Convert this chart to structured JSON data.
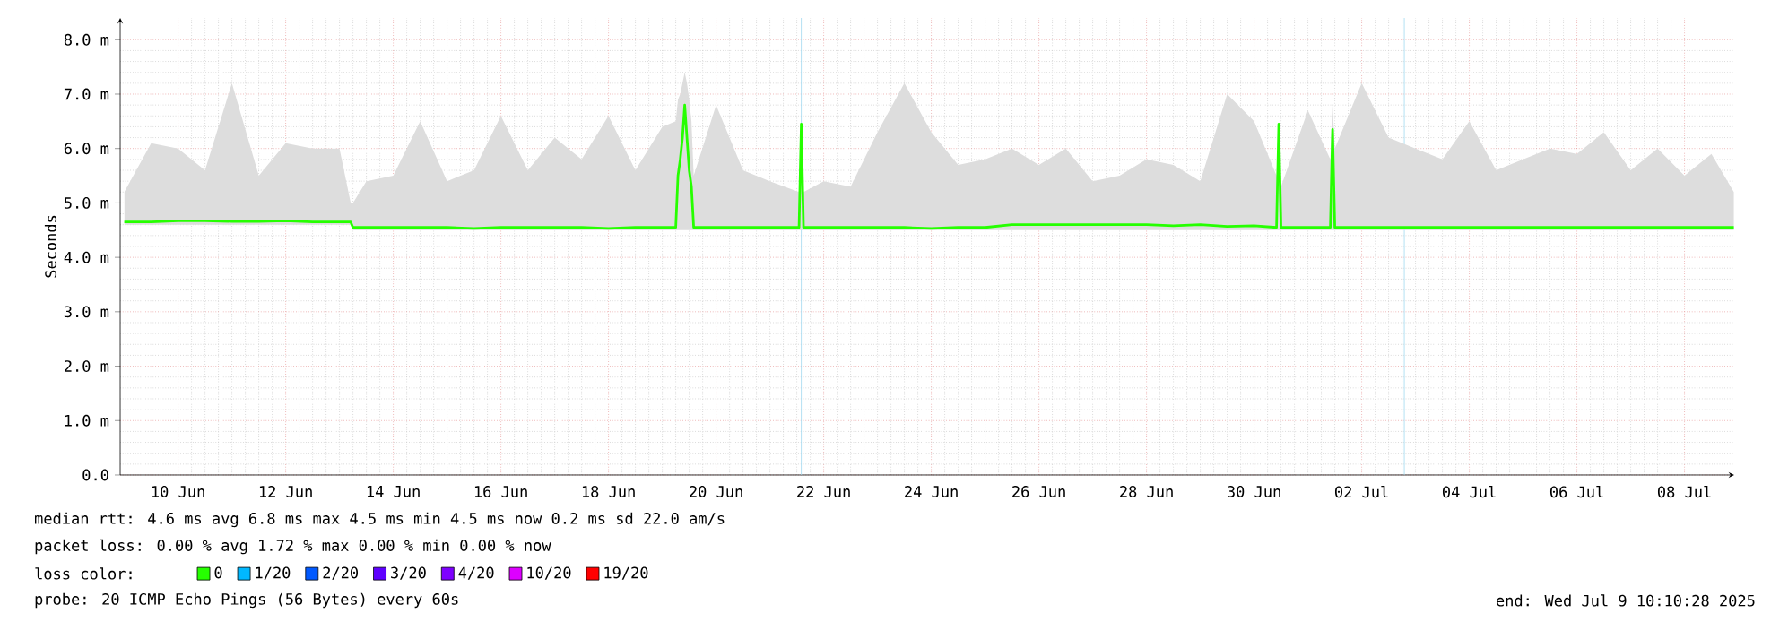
{
  "chart_data": {
    "type": "line",
    "ylabel": "Seconds",
    "x": [
      "2025-06-09T12:00",
      "2025-06-10T00:00",
      "2025-06-10T12:00",
      "2025-06-11T00:00",
      "2025-06-11T12:00",
      "2025-06-12T00:00",
      "2025-06-12T12:00",
      "2025-06-13T00:00",
      "2025-06-13T12:00",
      "2025-06-13T17:00",
      "2025-06-13T18:00",
      "2025-06-14T00:00",
      "2025-06-14T12:00",
      "2025-06-15T00:00",
      "2025-06-15T12:00",
      "2025-06-16T00:00",
      "2025-06-16T12:00",
      "2025-06-17T00:00",
      "2025-06-17T12:00",
      "2025-06-18T00:00",
      "2025-06-18T12:00",
      "2025-06-19T00:00",
      "2025-06-19T12:00",
      "2025-06-19T18:00",
      "2025-06-19T19:00",
      "2025-06-19T20:00",
      "2025-06-19T21:00",
      "2025-06-19T22:00",
      "2025-06-19T23:00",
      "2025-06-20T00:00",
      "2025-06-20T01:00",
      "2025-06-20T02:00",
      "2025-06-20T12:00",
      "2025-06-21T00:00",
      "2025-06-21T12:00",
      "2025-06-22T01:00",
      "2025-06-22T02:00",
      "2025-06-22T03:00",
      "2025-06-22T12:00",
      "2025-06-23T00:00",
      "2025-06-23T12:00",
      "2025-06-24T00:00",
      "2025-06-24T12:00",
      "2025-06-25T00:00",
      "2025-06-25T12:00",
      "2025-06-26T00:00",
      "2025-06-26T12:00",
      "2025-06-27T00:00",
      "2025-06-27T12:00",
      "2025-06-28T00:00",
      "2025-06-28T12:00",
      "2025-06-29T00:00",
      "2025-06-29T12:00",
      "2025-06-30T00:00",
      "2025-06-30T12:00",
      "2025-06-30T22:00",
      "2025-06-30T23:00",
      "2025-07-01T00:00",
      "2025-07-01T12:00",
      "2025-07-01T22:00",
      "2025-07-01T23:00",
      "2025-07-02T00:00",
      "2025-07-02T12:00",
      "2025-07-03T00:00",
      "2025-07-03T12:00",
      "2025-07-04T00:00",
      "2025-07-04T12:00",
      "2025-07-05T00:00",
      "2025-07-05T12:00",
      "2025-07-06T00:00",
      "2025-07-06T12:00",
      "2025-07-07T00:00",
      "2025-07-07T12:00",
      "2025-07-08T00:00",
      "2025-07-08T12:00",
      "2025-07-09T00:00",
      "2025-07-09T10:00"
    ],
    "series": [
      {
        "name": "0",
        "color": "#26ff00",
        "values": [
          4.65,
          4.65,
          4.67,
          4.67,
          4.66,
          4.66,
          4.67,
          4.65,
          4.65,
          4.65,
          4.55,
          4.55,
          4.55,
          4.55,
          4.55,
          4.53,
          4.55,
          4.55,
          4.55,
          4.55,
          4.53,
          4.55,
          4.55,
          4.55,
          5.5,
          5.8,
          6.2,
          6.8,
          6.2,
          5.6,
          5.3,
          4.55,
          4.55,
          4.55,
          4.55,
          4.55,
          6.45,
          4.55,
          4.55,
          4.55,
          4.55,
          4.55,
          4.53,
          4.55,
          4.55,
          4.6,
          4.6,
          4.6,
          4.6,
          4.6,
          4.6,
          4.58,
          4.6,
          4.57,
          4.58,
          4.55,
          6.45,
          4.55,
          4.55,
          4.55,
          6.35,
          4.55,
          4.55,
          4.55,
          4.55,
          4.55,
          4.55,
          4.55,
          4.55,
          4.55,
          4.55,
          4.55,
          4.55,
          4.55,
          4.55,
          4.55,
          4.55
        ],
        "lower": [
          4.6,
          4.6,
          4.6,
          4.6,
          4.6,
          4.6,
          4.6,
          4.6,
          4.6,
          4.6,
          4.5,
          4.5,
          4.5,
          4.5,
          4.5,
          4.5,
          4.5,
          4.5,
          4.5,
          4.5,
          4.5,
          4.5,
          4.5,
          4.5,
          4.5,
          4.5,
          4.5,
          4.5,
          4.5,
          4.5,
          4.5,
          4.5,
          4.5,
          4.5,
          4.5,
          4.5,
          4.5,
          4.5,
          4.5,
          4.5,
          4.5,
          4.5,
          4.5,
          4.5,
          4.5,
          4.5,
          4.5,
          4.5,
          4.5,
          4.5,
          4.5,
          4.5,
          4.5,
          4.5,
          4.5,
          4.5,
          4.5,
          4.5,
          4.5,
          4.5,
          4.5,
          4.5,
          4.5,
          4.5,
          4.5,
          4.5,
          4.5,
          4.5,
          4.5,
          4.5,
          4.5,
          4.5,
          4.5,
          4.5,
          4.5,
          4.5,
          4.5
        ],
        "upper": [
          5.2,
          6.1,
          6.0,
          5.6,
          7.2,
          5.5,
          6.1,
          6.0,
          6.0,
          5.0,
          5.0,
          5.4,
          5.5,
          6.5,
          5.4,
          5.6,
          6.6,
          5.6,
          6.2,
          5.8,
          6.6,
          5.6,
          6.4,
          6.5,
          6.9,
          7.0,
          7.2,
          7.4,
          7.2,
          6.9,
          6.5,
          5.5,
          6.8,
          5.6,
          5.4,
          5.2,
          6.45,
          5.2,
          5.4,
          5.3,
          6.3,
          7.2,
          6.3,
          5.7,
          5.8,
          6.0,
          5.7,
          6.0,
          5.4,
          5.5,
          5.8,
          5.7,
          5.4,
          7.0,
          6.5,
          5.5,
          6.5,
          5.3,
          6.7,
          5.8,
          6.8,
          6.0,
          7.2,
          6.2,
          6.0,
          5.8,
          6.5,
          5.6,
          5.8,
          6.0,
          5.9,
          6.3,
          5.6,
          6.0,
          5.5,
          5.9,
          5.2
        ]
      },
      {
        "name": "1/20",
        "color": "#00b8ff",
        "values": [
          null,
          null,
          null,
          null,
          null,
          null,
          null,
          null,
          null,
          null,
          null,
          null,
          null,
          null,
          null,
          null,
          null,
          null,
          null,
          null,
          null,
          null,
          null,
          null,
          null,
          null,
          null,
          null,
          null,
          null,
          null,
          null,
          null,
          null,
          null,
          null,
          null,
          null,
          null,
          null,
          null,
          null,
          null,
          null,
          null,
          null,
          null,
          null,
          null,
          null,
          null,
          null,
          null,
          null,
          null,
          null,
          null,
          null,
          null,
          null,
          null,
          null,
          null,
          null,
          null,
          null,
          null,
          null,
          null,
          null,
          null,
          null,
          null,
          null,
          null,
          null,
          null
        ]
      },
      {
        "name": "2/20",
        "color": "#0059ff",
        "values": [
          null,
          null,
          null,
          null,
          null,
          null,
          null,
          null,
          null,
          null,
          null,
          null,
          null,
          null,
          null,
          null,
          null,
          null,
          null,
          null,
          null,
          null,
          null,
          null,
          null,
          null,
          null,
          null,
          null,
          null,
          null,
          null,
          null,
          null,
          null,
          null,
          null,
          null,
          null,
          null,
          null,
          null,
          null,
          null,
          null,
          null,
          null,
          null,
          null,
          null,
          null,
          null,
          null,
          null,
          null,
          null,
          null,
          null,
          null,
          null,
          null,
          null,
          null,
          null,
          null,
          null,
          null,
          null,
          null,
          null,
          null,
          null,
          null,
          null,
          null,
          null,
          null
        ]
      },
      {
        "name": "3/20",
        "color": "#5e00ff",
        "values": [
          null,
          null,
          null,
          null,
          null,
          null,
          null,
          null,
          null,
          null,
          null,
          null,
          null,
          null,
          null,
          null,
          null,
          null,
          null,
          null,
          null,
          null,
          null,
          null,
          null,
          null,
          null,
          null,
          null,
          null,
          null,
          null,
          null,
          null,
          null,
          null,
          null,
          null,
          null,
          null,
          null,
          null,
          null,
          null,
          null,
          null,
          null,
          null,
          null,
          null,
          null,
          null,
          null,
          null,
          null,
          null,
          null,
          null,
          null,
          null,
          null,
          null,
          null,
          null,
          null,
          null,
          null,
          null,
          null,
          null,
          null,
          null,
          null,
          null,
          null,
          null,
          null
        ]
      },
      {
        "name": "4/20",
        "color": "#7e00ff",
        "values": [
          null,
          null,
          null,
          null,
          null,
          null,
          null,
          null,
          null,
          null,
          null,
          null,
          null,
          null,
          null,
          null,
          null,
          null,
          null,
          null,
          null,
          null,
          null,
          null,
          null,
          null,
          null,
          null,
          null,
          null,
          null,
          null,
          null,
          null,
          null,
          null,
          null,
          null,
          null,
          null,
          null,
          null,
          null,
          null,
          null,
          null,
          null,
          null,
          null,
          null,
          null,
          null,
          null,
          null,
          null,
          null,
          null,
          null,
          null,
          null,
          null,
          null,
          null,
          null,
          null,
          null,
          null,
          null,
          null,
          null,
          null,
          null,
          null,
          null,
          null,
          null,
          null
        ]
      },
      {
        "name": "10/20",
        "color": "#dd00ff",
        "values": [
          null,
          null,
          null,
          null,
          null,
          null,
          null,
          null,
          null,
          null,
          null,
          null,
          null,
          null,
          null,
          null,
          null,
          null,
          null,
          null,
          null,
          null,
          null,
          null,
          null,
          null,
          null,
          null,
          null,
          null,
          null,
          null,
          null,
          null,
          null,
          null,
          null,
          null,
          null,
          null,
          null,
          null,
          null,
          null,
          null,
          null,
          null,
          null,
          null,
          null,
          null,
          null,
          null,
          null,
          null,
          null,
          null,
          null,
          null,
          null,
          null,
          null,
          null,
          null,
          null,
          null,
          null,
          null,
          null,
          null,
          null,
          null,
          null,
          null,
          null,
          null,
          null
        ]
      },
      {
        "name": "19/20",
        "color": "#ff0000",
        "values": [
          null,
          null,
          null,
          null,
          null,
          null,
          null,
          null,
          null,
          null,
          null,
          null,
          null,
          null,
          null,
          null,
          null,
          null,
          null,
          null,
          null,
          null,
          null,
          null,
          null,
          null,
          null,
          null,
          null,
          null,
          null,
          null,
          null,
          null,
          null,
          null,
          null,
          null,
          null,
          null,
          null,
          null,
          null,
          null,
          null,
          null,
          null,
          null,
          null,
          null,
          null,
          null,
          null,
          null,
          null,
          null,
          null,
          null,
          null,
          null,
          null,
          null,
          null,
          null,
          null,
          null,
          null,
          null,
          null,
          null,
          null,
          null,
          null,
          null,
          null,
          null,
          null
        ]
      }
    ],
    "legend": "bottom",
    "legend_title": "loss color:",
    "xlim": [
      "2025-06-09T10:10",
      "2025-07-09T10:10"
    ],
    "xticks": [
      {
        "value": "2025-06-10T12:00",
        "label": "10 Jun"
      },
      {
        "value": "2025-06-12T12:00",
        "label": "12 Jun"
      },
      {
        "value": "2025-06-14T12:00",
        "label": "14 Jun"
      },
      {
        "value": "2025-06-16T12:00",
        "label": "16 Jun"
      },
      {
        "value": "2025-06-18T12:00",
        "label": "18 Jun"
      },
      {
        "value": "2025-06-20T12:00",
        "label": "20 Jun"
      },
      {
        "value": "2025-06-22T12:00",
        "label": "22 Jun"
      },
      {
        "value": "2025-06-24T12:00",
        "label": "24 Jun"
      },
      {
        "value": "2025-06-26T12:00",
        "label": "26 Jun"
      },
      {
        "value": "2025-06-28T12:00",
        "label": "28 Jun"
      },
      {
        "value": "2025-06-30T12:00",
        "label": "30 Jun"
      },
      {
        "value": "2025-07-02T12:00",
        "label": "02 Jul"
      },
      {
        "value": "2025-07-04T12:00",
        "label": "04 Jul"
      },
      {
        "value": "2025-07-06T12:00",
        "label": "06 Jul"
      },
      {
        "value": "2025-07-08T12:00",
        "label": "08 Jul"
      }
    ],
    "ylim": [
      0,
      8.4
    ],
    "yticks": [
      {
        "value": 0,
        "label": "0.0"
      },
      {
        "value": 1,
        "label": "1.0 m"
      },
      {
        "value": 2,
        "label": "2.0 m"
      },
      {
        "value": 3,
        "label": "3.0 m"
      },
      {
        "value": 4,
        "label": "4.0 m"
      },
      {
        "value": 5,
        "label": "5.0 m"
      },
      {
        "value": 6,
        "label": "6.0 m"
      },
      {
        "value": 7,
        "label": "7.0 m"
      },
      {
        "value": 8,
        "label": "8.0 m"
      }
    ],
    "grid": true,
    "ref_lines": [
      {
        "axis": "x",
        "value": "2025-06-22T02:00",
        "color": "#a0d8ef"
      },
      {
        "axis": "x",
        "value": "2025-07-03T07:00",
        "color": "#a0d8ef"
      }
    ],
    "annotations": [
      "median rtt: 4.6 ms avg 6.8 ms max 4.5 ms min 4.5 ms now 0.2 ms sd 22.0 am/s",
      "packet loss: 0.00 % avg 1.72 % max 0.00 % min 0.00 % now",
      "probe: 20 ICMP Echo Pings (56 Bytes) every 60s",
      "end: Wed Jul 9 10:10:28 2025"
    ]
  }
}
